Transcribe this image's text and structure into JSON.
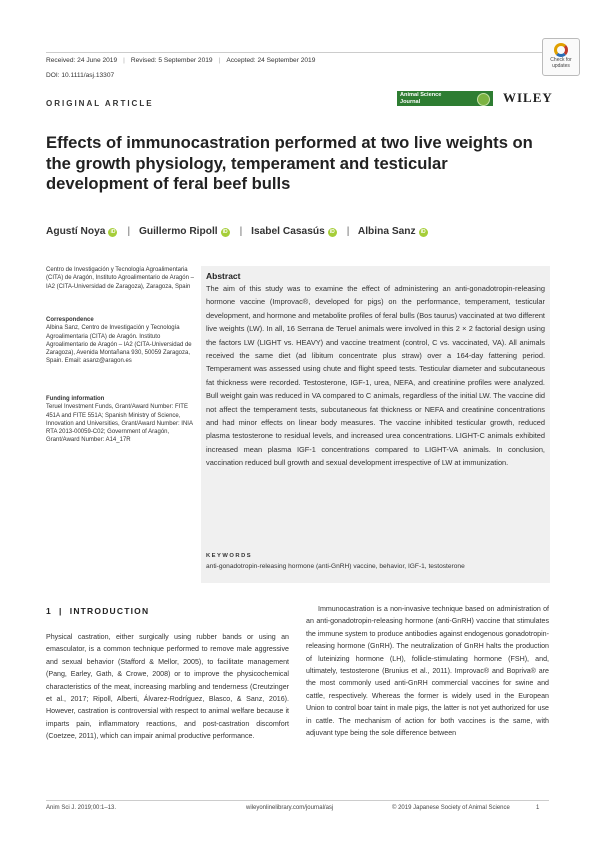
{
  "header": {
    "received": "Received: 24 June 2019",
    "revised": "Revised: 5 September 2019",
    "accepted": "Accepted: 24 September 2019",
    "doi": "DOI: 10.1111/asj.13307",
    "check_updates": "Check for updates"
  },
  "article_type": "ORIGINAL ARTICLE",
  "journal_logo": "Animal Science Journal",
  "publisher": "WILEY",
  "title": "Effects of immunocastration performed at two live weights on the growth physiology, temperament and testicular development of feral beef bulls",
  "authors": [
    "Agustí Noya",
    "Guillermo Ripoll",
    "Isabel Casasús",
    "Albina Sanz"
  ],
  "affiliation": "Centro de Investigación y Tecnología Agroalimentaria (CITA) de Aragón, Instituto Agroalimentario de Aragón – IA2 (CITA-Universidad de Zaragoza), Zaragoza, Spain",
  "correspondence": {
    "heading": "Correspondence",
    "text": "Albina Sanz, Centro de Investigación y Tecnología Agroalimentaria (CITA) de Aragón. Instituto Agroalimentario de Aragón – IA2 (CITA-Universidad de Zaragoza), Avenida Montañana 930, 50059 Zaragoza, Spain. Email: asanz@aragon.es"
  },
  "funding": {
    "heading": "Funding information",
    "text": "Teruel Investment Funds, Grant/Award Number: FITE 451A and FITE 551A; Spanish Ministry of Science, Innovation and Universities, Grant/Award Number: INIA RTA 2013-00059-C02; Government of Aragón, Grant/Award Number: A14_17R"
  },
  "abstract": {
    "heading": "Abstract",
    "text": "The aim of this study was to examine the effect of administering an anti-gonadotropin-releasing hormone vaccine (Improvac®, developed for pigs) on the performance, temperament, testicular development, and hormone and metabolite profiles of feral bulls (Bos taurus) vaccinated at two different live weights (LW). In all, 16 Serrana de Teruel animals were involved in this 2 × 2 factorial design using the factors LW (LIGHT vs. HEAVY) and vaccine treatment (control, C vs. vaccinated, VA). All animals received the same diet (ad libitum concentrate plus straw) over a 164-day fattening period. Temperament was assessed using chute and flight speed tests. Testicular diameter and subcutaneous fat thickness were recorded. Testosterone, IGF-1, urea, NEFA, and creatinine profiles were analyzed. Bull weight gain was reduced in VA compared to C animals, regardless of the initial LW. The vaccine did not affect the temperament tests, subcutaneous fat thickness or NEFA and creatinine concentrations and had minor effects on linear body measures. The vaccine inhibited testicular growth, reduced plasma testosterone to residual levels, and increased urea concentrations. LIGHT-C animals exhibited increased mean plasma IGF-1 concentrations compared to LIGHT-VA animals. In conclusion, vaccination reduced bull growth and sexual development irrespective of LW at immunization."
  },
  "keywords": {
    "heading": "KEYWORDS",
    "text": "anti-gonadotropin-releasing hormone (anti-GnRH) vaccine, behavior, IGF-1, testosterone"
  },
  "section1": {
    "heading": "1  |  INTRODUCTION",
    "col1": "Physical castration, either surgically using rubber bands or using an emasculator, is a common technique performed to remove male aggressive and sexual behavior (Stafford & Mellor, 2005), to facilitate management (Pang, Earley, Gath, & Crowe, 2008) or to improve the physicochemical characteristics of the meat, increasing marbling and tenderness (Creutzinger et al., 2017; Ripoll, Alberti, Álvarez-Rodríguez, Blasco, & Sanz, 2016). However, castration is controversial with respect to animal welfare because it imparts pain, inflammatory reactions, and post-castration discomfort (Coetzee, 2011), which can impair animal productive performance.",
    "col2": "Immunocastration is a non-invasive technique based on administration of an anti-gonadotropin-releasing hormone (anti-GnRH) vaccine that stimulates the immune system to produce antibodies against endogenous gonadotropin-releasing hormone (GnRH). The neutralization of GnRH halts the production of luteinizing hormone (LH), follicle-stimulating hormone (FSH), and, ultimately, testosterone (Brunius et al., 2011). Improvac® and Bopriva® are the most commonly used anti-GnRH commercial vaccines for swine and cattle, respectively. Whereas the former is widely used in the European Union to control boar taint in male pigs, the latter is not yet authorized for use in cattle. The mechanism of action for both vaccines is the same, with adjuvant type being the sole difference between"
  },
  "footer": {
    "citation": "Anim Sci J. 2019;00:1–13.",
    "url": "wileyonlinelibrary.com/journal/asj",
    "copyright": "© 2019 Japanese Society of Animal Science",
    "page": "1"
  }
}
